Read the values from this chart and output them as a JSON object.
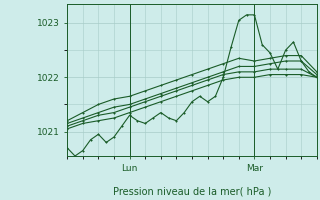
{
  "xlabel": "Pression niveau de la mer( hPa )",
  "bg_color": "#ceecea",
  "plot_bg_color": "#ceecea",
  "grid_color": "#a8ccc8",
  "line_color": "#1a5c28",
  "tick_label_color": "#1a5c28",
  "xlabel_color": "#1a5c28",
  "ylim": [
    1020.55,
    1023.35
  ],
  "yticks": [
    1021,
    1022,
    1023
  ],
  "xlim": [
    0,
    96
  ],
  "lun_x": 24,
  "mar_x": 72,
  "figsize": [
    3.2,
    2.0
  ],
  "dpi": 100,
  "series": [
    [
      0,
      1021.05,
      6,
      1021.15,
      12,
      1021.2,
      18,
      1021.25,
      24,
      1021.35,
      30,
      1021.45,
      36,
      1021.55,
      42,
      1021.65,
      48,
      1021.75,
      54,
      1021.85,
      60,
      1021.95,
      66,
      1022.0,
      72,
      1022.0,
      78,
      1022.05,
      84,
      1022.05,
      90,
      1022.05,
      96,
      1022.0
    ],
    [
      0,
      1021.1,
      6,
      1021.2,
      12,
      1021.3,
      18,
      1021.35,
      24,
      1021.45,
      30,
      1021.55,
      36,
      1021.65,
      42,
      1021.75,
      48,
      1021.85,
      54,
      1021.95,
      60,
      1022.05,
      66,
      1022.1,
      72,
      1022.1,
      78,
      1022.15,
      84,
      1022.15,
      90,
      1022.15,
      96,
      1022.0
    ],
    [
      0,
      1021.15,
      6,
      1021.25,
      12,
      1021.35,
      18,
      1021.45,
      24,
      1021.5,
      30,
      1021.6,
      36,
      1021.7,
      42,
      1021.8,
      48,
      1021.9,
      54,
      1022.0,
      60,
      1022.1,
      66,
      1022.2,
      72,
      1022.2,
      78,
      1022.25,
      84,
      1022.3,
      90,
      1022.3,
      96,
      1022.05
    ],
    [
      0,
      1021.2,
      6,
      1021.35,
      12,
      1021.5,
      18,
      1021.6,
      24,
      1021.65,
      30,
      1021.75,
      36,
      1021.85,
      42,
      1021.95,
      48,
      1022.05,
      54,
      1022.15,
      60,
      1022.25,
      66,
      1022.35,
      72,
      1022.3,
      78,
      1022.35,
      84,
      1022.4,
      90,
      1022.4,
      96,
      1022.1
    ],
    [
      0,
      1020.7,
      3,
      1020.55,
      6,
      1020.65,
      9,
      1020.85,
      12,
      1020.95,
      15,
      1020.8,
      18,
      1020.9,
      21,
      1021.1,
      24,
      1021.3,
      27,
      1021.2,
      30,
      1021.15,
      33,
      1021.25,
      36,
      1021.35,
      39,
      1021.25,
      42,
      1021.2,
      45,
      1021.35,
      48,
      1021.55,
      51,
      1021.65,
      54,
      1021.55,
      57,
      1021.65,
      60,
      1022.0,
      63,
      1022.55,
      66,
      1023.05,
      69,
      1023.15,
      72,
      1023.15,
      75,
      1022.6,
      78,
      1022.45,
      81,
      1022.15,
      84,
      1022.5,
      87,
      1022.65,
      90,
      1022.3,
      93,
      1022.1,
      96,
      1022.0
    ]
  ]
}
